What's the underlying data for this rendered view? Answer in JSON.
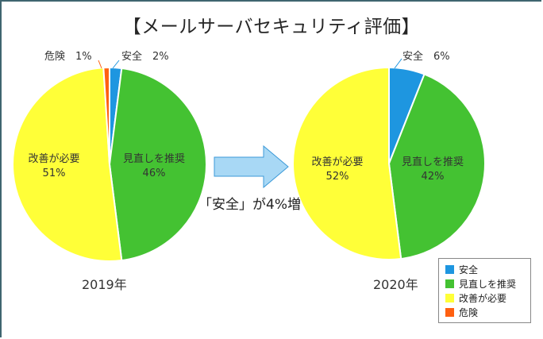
{
  "title": "【メールサーバセキュリティ評価】",
  "colors": {
    "safe": "#1e96e0",
    "review": "#44c232",
    "improve": "#ffff38",
    "danger": "#ff6010",
    "arrow_fill": "#a8d8f5",
    "arrow_stroke": "#3c9ad8",
    "frame": "#3f6570"
  },
  "annotation": "「安全」が4%増",
  "legend": {
    "items": [
      {
        "label": "安全",
        "color": "#1e96e0"
      },
      {
        "label": "見直しを推奨",
        "color": "#44c232"
      },
      {
        "label": "改善が必要",
        "color": "#ffff38"
      },
      {
        "label": "危険",
        "color": "#ff6010"
      }
    ]
  },
  "charts": {
    "left": {
      "year_label": "2019年",
      "labels": {
        "danger": "危険　1%",
        "safe": "安全　2%",
        "improve_name": "改善が必要",
        "improve_pct": "51%",
        "review_name": "見直しを推奨",
        "review_pct": "46%"
      }
    },
    "right": {
      "year_label": "2020年",
      "labels": {
        "safe": "安全　6%",
        "improve_name": "改善が必要",
        "improve_pct": "52%",
        "review_name": "見直しを推奨",
        "review_pct": "42%"
      }
    }
  },
  "chart_data": [
    {
      "type": "pie",
      "title": "2019年",
      "categories": [
        "安全",
        "見直しを推奨",
        "改善が必要",
        "危険"
      ],
      "values": [
        2,
        46,
        51,
        1
      ],
      "unit": "%",
      "colors": [
        "#1e96e0",
        "#44c232",
        "#ffff38",
        "#ff6010"
      ],
      "start_angle": "12 o'clock, clockwise",
      "legend_position": "bottom-right"
    },
    {
      "type": "pie",
      "title": "2020年",
      "categories": [
        "安全",
        "見直しを推奨",
        "改善が必要",
        "危険"
      ],
      "values": [
        6,
        42,
        52,
        0
      ],
      "unit": "%",
      "colors": [
        "#1e96e0",
        "#44c232",
        "#ffff38",
        "#ff6010"
      ],
      "start_angle": "12 o'clock, clockwise",
      "legend_position": "bottom-right"
    }
  ]
}
